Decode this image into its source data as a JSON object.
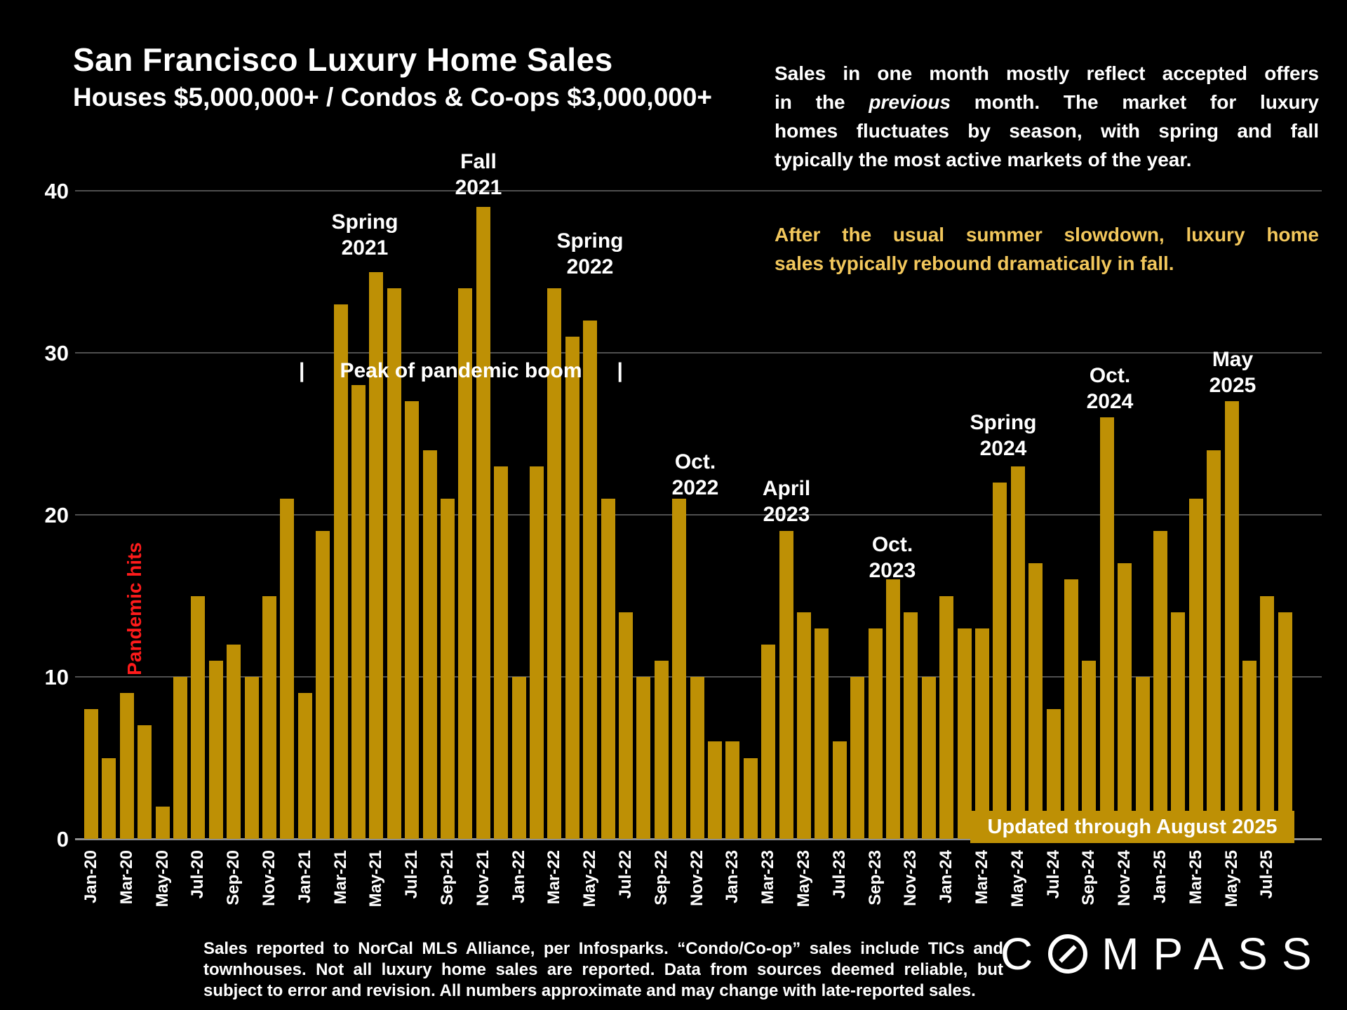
{
  "header": {
    "title": "San Francisco Luxury Home Sales",
    "subtitle": "Houses $5,000,000+ / Condos & Co-ops $3,000,000+"
  },
  "right_note": {
    "line1": "Sales in one month mostly reflect accepted offers",
    "line2_pre": "in the ",
    "line2_italic": "previous",
    "line2_post": " month. The market for luxury",
    "line3": "homes fluctuates by season, with spring and fall",
    "line4": "typically the most active markets of the year."
  },
  "highlight_note": {
    "line1": "After the usual summer slowdown, luxury home",
    "line2": "sales typically rebound dramatically in fall."
  },
  "band": {
    "text": "Updated through August 2025"
  },
  "footer": {
    "lines": [
      "Sales reported to NorCal MLS Alliance, per  Infosparks. “Condo/Co-op” sales include TICs and",
      "townhouses. Not all luxury home sales are reported. Data from sources deemed reliable, but",
      "subject to error and revision. All numbers approximate and may change with late-reported sales."
    ]
  },
  "brand": {
    "name": "COMPASS",
    "left": "C",
    "right": "MPASS"
  },
  "colors": {
    "background": "#000000",
    "bar": "#BE9005",
    "band": "#BE9005",
    "highlight_text": "#F2C75C",
    "annotation_red": "#FF1B1B",
    "gridline": "#4F4F4F",
    "text": "#FFFFFF"
  },
  "chart_data": {
    "type": "bar",
    "title": "San Francisco Luxury Home Sales",
    "xlabel": "",
    "ylabel": "",
    "ylim": [
      0,
      40
    ],
    "yticks": [
      0,
      10,
      20,
      30,
      40
    ],
    "grid": true,
    "x_tick_interval": 2,
    "categories": [
      "Jan-20",
      "Feb-20",
      "Mar-20",
      "Apr-20",
      "May-20",
      "Jun-20",
      "Jul-20",
      "Aug-20",
      "Sep-20",
      "Oct-20",
      "Nov-20",
      "Dec-20",
      "Jan-21",
      "Feb-21",
      "Mar-21",
      "Apr-21",
      "May-21",
      "Jun-21",
      "Jul-21",
      "Aug-21",
      "Sep-21",
      "Oct-21",
      "Nov-21",
      "Dec-21",
      "Jan-22",
      "Feb-22",
      "Mar-22",
      "Apr-22",
      "May-22",
      "Jun-22",
      "Jul-22",
      "Aug-22",
      "Sep-22",
      "Oct-22",
      "Nov-22",
      "Dec-22",
      "Jan-23",
      "Feb-23",
      "Mar-23",
      "Apr-23",
      "May-23",
      "Jun-23",
      "Jul-23",
      "Aug-23",
      "Sep-23",
      "Oct-23",
      "Nov-23",
      "Dec-23",
      "Jan-24",
      "Feb-24",
      "Mar-24",
      "Apr-24",
      "May-24",
      "Jun-24",
      "Jul-24",
      "Aug-24",
      "Sep-24",
      "Oct-24",
      "Nov-24",
      "Dec-24",
      "Jan-25",
      "Feb-25",
      "Mar-25",
      "Apr-25",
      "May-25",
      "Jun-25",
      "Jul-25",
      "Aug-25"
    ],
    "values": [
      8,
      5,
      9,
      7,
      2,
      10,
      15,
      11,
      12,
      10,
      15,
      21,
      9,
      19,
      33,
      28,
      35,
      34,
      27,
      24,
      21,
      34,
      39,
      23,
      10,
      23,
      34,
      31,
      32,
      21,
      14,
      10,
      11,
      21,
      10,
      6,
      6,
      5,
      12,
      19,
      14,
      13,
      6,
      10,
      13,
      16,
      14,
      10,
      15,
      13,
      13,
      22,
      23,
      17,
      8,
      16,
      11,
      26,
      17,
      10,
      19,
      14,
      21,
      24,
      27,
      11,
      15,
      14
    ],
    "annotations": [
      {
        "id": "pandemic-hits",
        "lines": [
          "Pandemic hits"
        ]
      },
      {
        "id": "spring-2021",
        "lines": [
          "Spring",
          "2021"
        ]
      },
      {
        "id": "fall-2021",
        "lines": [
          "Fall",
          "2021"
        ]
      },
      {
        "id": "peak-banner",
        "lines": [
          "|      Peak of pandemic boom      |"
        ]
      },
      {
        "id": "spring-2022",
        "lines": [
          "Spring",
          "2022"
        ]
      },
      {
        "id": "oct-2022",
        "lines": [
          "Oct.",
          "2022"
        ]
      },
      {
        "id": "april-2023",
        "lines": [
          "April",
          "2023"
        ]
      },
      {
        "id": "oct-2023",
        "lines": [
          "Oct.",
          "2023"
        ]
      },
      {
        "id": "spring-2024",
        "lines": [
          "Spring",
          "2024"
        ]
      },
      {
        "id": "oct-2024",
        "lines": [
          "Oct.",
          "2024"
        ]
      },
      {
        "id": "may-2025",
        "lines": [
          "May",
          "2025"
        ]
      }
    ]
  }
}
